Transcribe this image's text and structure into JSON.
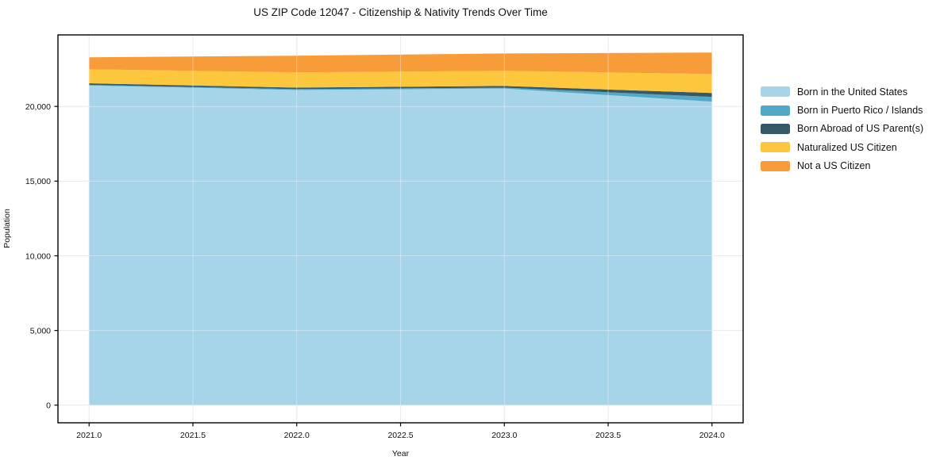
{
  "chart_data": {
    "type": "area",
    "stacked": true,
    "title": "US ZIP Code 12047 - Citizenship & Nativity Trends Over Time",
    "xlabel": "Year",
    "ylabel": "Population",
    "x": [
      2021,
      2022,
      2023,
      2024
    ],
    "series": [
      {
        "name": "Born in the United States",
        "color": "#9FD1E6",
        "values": [
          21400,
          21100,
          21200,
          20320
        ]
      },
      {
        "name": "Born in Puerto Rico / Islands",
        "color": "#45A3C2",
        "values": [
          50,
          60,
          60,
          320
        ]
      },
      {
        "name": "Born Abroad of US Parent(s)",
        "color": "#284B5C",
        "values": [
          100,
          100,
          110,
          260
        ]
      },
      {
        "name": "Naturalized US Citizen",
        "color": "#FDC32E",
        "values": [
          940,
          1020,
          1020,
          1270
        ]
      },
      {
        "name": "Not a US Citizen",
        "color": "#F7942B",
        "values": [
          800,
          1120,
          1160,
          1440
        ]
      }
    ],
    "xlim": [
      2020.85,
      2024.15
    ],
    "ylim": [
      -1181,
      24791
    ],
    "xticks": {
      "values": [
        2021.0,
        2021.5,
        2022.0,
        2022.5,
        2023.0,
        2023.5,
        2024.0
      ],
      "labels": [
        "2021.0",
        "2021.5",
        "2022.0",
        "2022.5",
        "2023.0",
        "2023.5",
        "2024.0"
      ]
    },
    "yticks": {
      "values": [
        0,
        5000,
        10000,
        15000,
        20000
      ],
      "labels": [
        "0",
        "5,000",
        "10,000",
        "15,000",
        "20,000"
      ]
    },
    "grid": true,
    "legend_position": "right",
    "colors": {
      "spine": "#000000",
      "grid_under": "#dedede",
      "grid_over": "rgba(255,255,255,0.40)",
      "tick": "#000000",
      "text": "#111111"
    }
  }
}
